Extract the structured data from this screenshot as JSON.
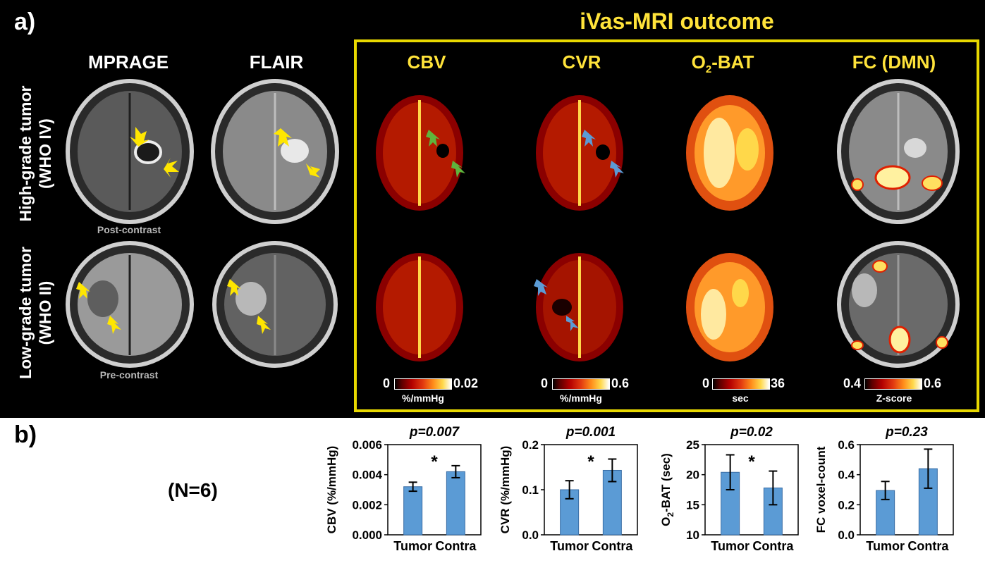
{
  "panel_a_label": "a)",
  "panel_b_label": "b)",
  "ivas_title": "iVas-MRI outcome",
  "columns": {
    "mprage": "MPRAGE",
    "flair": "FLAIR",
    "cbv": "CBV",
    "cvr": "CVR",
    "o2bat_prefix": "O",
    "o2bat_sub": "2",
    "o2bat_suffix": "-BAT",
    "fc": "FC (DMN)"
  },
  "rows": {
    "high_line1": "High-grade tumor",
    "high_line2": "(WHO IV)",
    "low_line1": "Low-grade tumor",
    "low_line2": "(WHO II)"
  },
  "captions": {
    "post_contrast": "Post-contrast",
    "pre_contrast": "Pre-contrast"
  },
  "colorbars": [
    {
      "min": "0",
      "max": "0.02",
      "unit": "%/mmHg"
    },
    {
      "min": "0",
      "max": "0.6",
      "unit": "%/mmHg"
    },
    {
      "min": "0",
      "max": "36",
      "unit": "sec"
    },
    {
      "min": "0.4",
      "max": "0.6",
      "unit": "Z-score"
    }
  ],
  "n_label": "(N=6)",
  "colors": {
    "bar": "#5b9bd5",
    "yellow_title": "#ffe33a",
    "arrow_yellow": "#ffe600",
    "arrow_green": "#5fb43c",
    "arrow_blue": "#5b9bd5"
  },
  "chart_data": [
    {
      "type": "bar",
      "title": "p=0.007",
      "categories": [
        "Tumor",
        "Contra"
      ],
      "values": [
        0.0032,
        0.0042
      ],
      "errors": [
        0.0003,
        0.0004
      ],
      "ylabel": "CBV (%/mmHg)",
      "ylim": [
        0,
        0.006
      ],
      "yticks": [
        "0.000",
        "0.002",
        "0.004",
        "0.006"
      ],
      "ytick_values": [
        0,
        0.002,
        0.004,
        0.006
      ],
      "significance": "*"
    },
    {
      "type": "bar",
      "title": "p=0.001",
      "categories": [
        "Tumor",
        "Contra"
      ],
      "values": [
        0.1,
        0.143
      ],
      "errors": [
        0.02,
        0.025
      ],
      "ylabel": "CVR (%/mmHg)",
      "ylim": [
        0,
        0.2
      ],
      "yticks": [
        "0.0",
        "0.1",
        "0.2"
      ],
      "ytick_values": [
        0,
        0.1,
        0.2
      ],
      "significance": "*"
    },
    {
      "type": "bar",
      "title": "p=0.02",
      "categories": [
        "Tumor",
        "Contra"
      ],
      "values": [
        20.4,
        17.8
      ],
      "errors": [
        2.9,
        2.8
      ],
      "ylabel_prefix": "O",
      "ylabel_sub": "2",
      "ylabel_suffix": "-BAT (sec)",
      "ylim": [
        10,
        25
      ],
      "yticks": [
        "10",
        "15",
        "20",
        "25"
      ],
      "ytick_values": [
        10,
        15,
        20,
        25
      ],
      "significance": "*"
    },
    {
      "type": "bar",
      "title": "p=0.23",
      "categories": [
        "Tumor",
        "Contra"
      ],
      "values": [
        0.295,
        0.44
      ],
      "errors": [
        0.06,
        0.13
      ],
      "ylabel": "FC voxel-count",
      "ylim": [
        0,
        0.6
      ],
      "yticks": [
        "0.0",
        "0.2",
        "0.4",
        "0.6"
      ],
      "ytick_values": [
        0,
        0.2,
        0.4,
        0.6
      ],
      "significance": ""
    }
  ]
}
